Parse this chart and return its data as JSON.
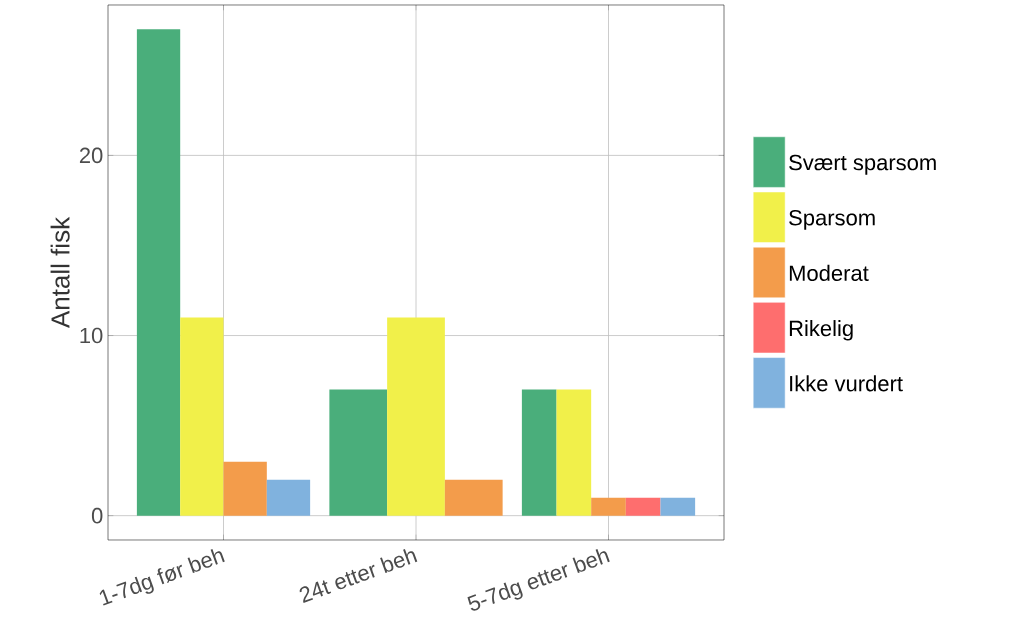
{
  "chart_data": {
    "type": "bar",
    "ylabel": "Antall fisk",
    "categories": [
      "1-7dg før beh",
      "24t etter beh",
      "5-7dg etter beh"
    ],
    "series": [
      {
        "name": "Svært sparsom",
        "color": "#4aae7b",
        "values": [
          27,
          7,
          7
        ]
      },
      {
        "name": "Sparsom",
        "color": "#f1f04a",
        "values": [
          11,
          11,
          7
        ]
      },
      {
        "name": "Moderat",
        "color": "#f39c4b",
        "values": [
          3,
          2,
          1
        ]
      },
      {
        "name": "Rikelig",
        "color": "#fe6e6e",
        "values": [
          null,
          null,
          1
        ]
      },
      {
        "name": "Ikke vurdert",
        "color": "#80b2de",
        "values": [
          2,
          null,
          1
        ]
      }
    ],
    "ylim": [
      -1.35,
      28.35
    ],
    "yticks": [
      0,
      10,
      20
    ],
    "grid": true,
    "legend": "right"
  }
}
